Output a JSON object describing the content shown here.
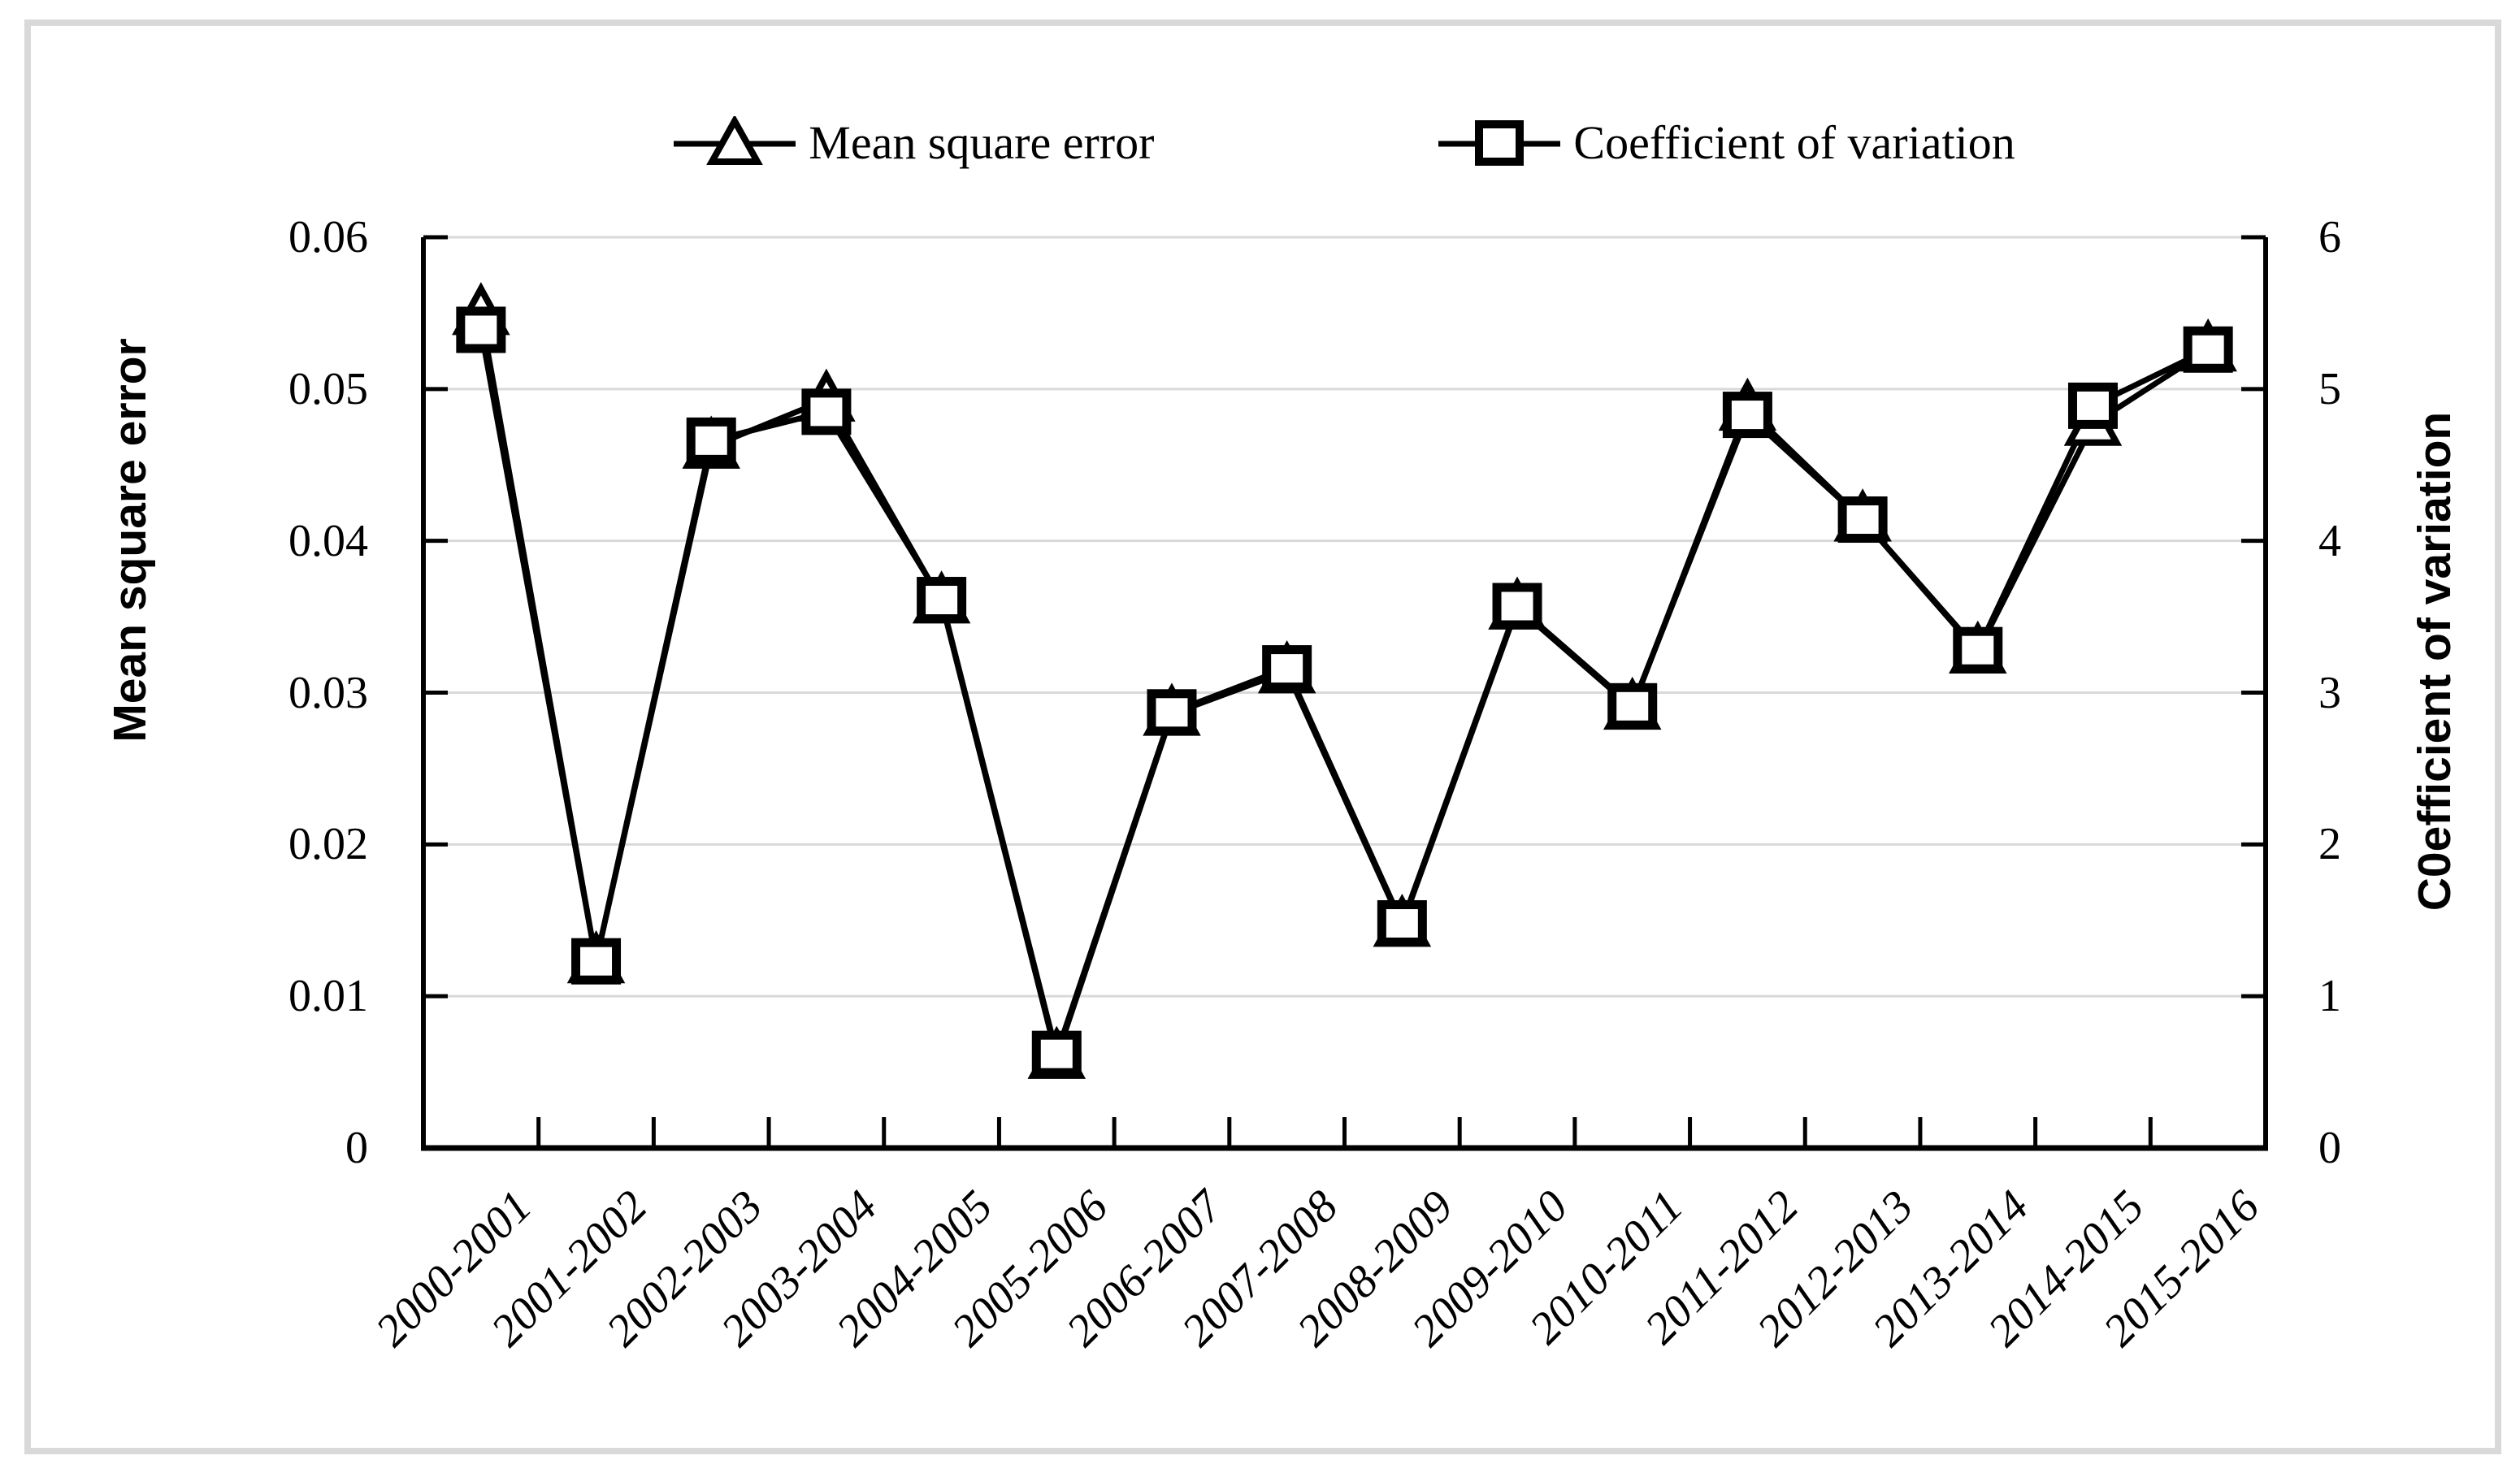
{
  "figure": {
    "border_color": "#d9d9d9",
    "background_color": "#ffffff",
    "grid_color": "#d9d9d9",
    "line_color": "#000000"
  },
  "legend": {
    "items": [
      {
        "label": "Mean square error",
        "marker": "triangle"
      },
      {
        "label": "Coefficient of variation",
        "marker": "square"
      }
    ]
  },
  "left_axis_title": "Mean square error",
  "right_axis_title": "C0efficient of variation",
  "chart_data": {
    "type": "line",
    "title": "",
    "categories": [
      "2000-2001",
      "2001-2002",
      "2002-2003",
      "2003-2004",
      "2004-2005",
      "2005-2006",
      "2006-2007",
      "2007-2008",
      "2008-2009",
      "2009-2010",
      "2010-2011",
      "2011-2012",
      "2012-2013",
      "2013-2014",
      "2014-2015",
      "2015-2016"
    ],
    "series": [
      {
        "name": "Mean square error",
        "axis": "left",
        "marker": "triangle",
        "values": [
          0.055,
          0.0123,
          0.0462,
          0.0493,
          0.036,
          0.006,
          0.0286,
          0.0314,
          0.0147,
          0.0356,
          0.029,
          0.0487,
          0.0414,
          0.0327,
          0.0477,
          0.0526
        ]
      },
      {
        "name": "Coefficient of variation",
        "axis": "right",
        "marker": "square",
        "values": [
          5.39,
          1.23,
          4.66,
          4.85,
          3.61,
          0.62,
          2.87,
          3.16,
          1.48,
          3.57,
          2.91,
          4.83,
          4.14,
          3.28,
          4.89,
          5.26
        ]
      }
    ],
    "left_axis": {
      "label": "Mean square error",
      "ylim": [
        0,
        0.06
      ],
      "tick_labels": [
        "0",
        "0.01",
        "0.02",
        "0.03",
        "0.04",
        "0.05",
        "0.06"
      ]
    },
    "right_axis": {
      "label": "C0efficient of variation",
      "ylim": [
        0,
        6
      ],
      "tick_labels": [
        "0",
        "1",
        "2",
        "3",
        "4",
        "5",
        "6"
      ]
    },
    "grid": true,
    "legend_position": "top"
  }
}
